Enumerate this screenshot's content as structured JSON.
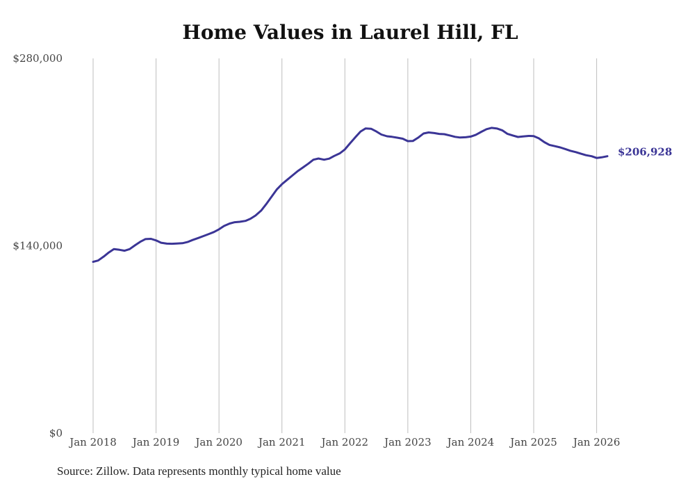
{
  "chart_data": {
    "type": "line",
    "title": "Home Values in Laurel Hill, FL",
    "source": "Source: Zillow. Data represents monthly typical home value",
    "xlabel": "",
    "ylabel": "",
    "ylim": [
      0,
      280000
    ],
    "y_ticks": [
      {
        "value": 0,
        "label": "$0"
      },
      {
        "value": 140000,
        "label": "$140,000"
      },
      {
        "value": 280000,
        "label": "$280,000"
      }
    ],
    "x_ticks": [
      {
        "value": 2018,
        "label": "Jan 2018"
      },
      {
        "value": 2019,
        "label": "Jan 2019"
      },
      {
        "value": 2020,
        "label": "Jan 2020"
      },
      {
        "value": 2021,
        "label": "Jan 2021"
      },
      {
        "value": 2022,
        "label": "Jan 2022"
      },
      {
        "value": 2023,
        "label": "Jan 2023"
      },
      {
        "value": 2024,
        "label": "Jan 2024"
      },
      {
        "value": 2025,
        "label": "Jan 2025"
      },
      {
        "value": 2026,
        "label": "Jan 2026"
      }
    ],
    "xlim": [
      2018,
      2026.17
    ],
    "grid": "vertical",
    "line_color": "#3b3596",
    "end_label": "$206,928",
    "series": [
      {
        "name": "Typical home value",
        "points": [
          [
            2018.0,
            128000
          ],
          [
            2018.08,
            129000
          ],
          [
            2018.17,
            132000
          ],
          [
            2018.25,
            135000
          ],
          [
            2018.33,
            137500
          ],
          [
            2018.42,
            137000
          ],
          [
            2018.5,
            136300
          ],
          [
            2018.58,
            137500
          ],
          [
            2018.67,
            140500
          ],
          [
            2018.75,
            143000
          ],
          [
            2018.83,
            145000
          ],
          [
            2018.92,
            145200
          ],
          [
            2019.0,
            144000
          ],
          [
            2019.08,
            142300
          ],
          [
            2019.17,
            141600
          ],
          [
            2019.25,
            141500
          ],
          [
            2019.33,
            141700
          ],
          [
            2019.42,
            141900
          ],
          [
            2019.5,
            142800
          ],
          [
            2019.58,
            144300
          ],
          [
            2019.67,
            145800
          ],
          [
            2019.75,
            147200
          ],
          [
            2019.83,
            148600
          ],
          [
            2019.92,
            150300
          ],
          [
            2020.0,
            152300
          ],
          [
            2020.08,
            154800
          ],
          [
            2020.17,
            156600
          ],
          [
            2020.25,
            157600
          ],
          [
            2020.33,
            157900
          ],
          [
            2020.42,
            158600
          ],
          [
            2020.5,
            160200
          ],
          [
            2020.58,
            162600
          ],
          [
            2020.67,
            166300
          ],
          [
            2020.75,
            171100
          ],
          [
            2020.83,
            176300
          ],
          [
            2020.92,
            182200
          ],
          [
            2021.0,
            186000
          ],
          [
            2021.08,
            189200
          ],
          [
            2021.17,
            192700
          ],
          [
            2021.25,
            195800
          ],
          [
            2021.33,
            198400
          ],
          [
            2021.42,
            201400
          ],
          [
            2021.5,
            204300
          ],
          [
            2021.58,
            205200
          ],
          [
            2021.67,
            204300
          ],
          [
            2021.75,
            205100
          ],
          [
            2021.83,
            207100
          ],
          [
            2021.92,
            209100
          ],
          [
            2022.0,
            212000
          ],
          [
            2022.08,
            216400
          ],
          [
            2022.17,
            221300
          ],
          [
            2022.25,
            225400
          ],
          [
            2022.33,
            227700
          ],
          [
            2022.42,
            227400
          ],
          [
            2022.5,
            225400
          ],
          [
            2022.58,
            223100
          ],
          [
            2022.67,
            221800
          ],
          [
            2022.75,
            221400
          ],
          [
            2022.83,
            220800
          ],
          [
            2022.92,
            220000
          ],
          [
            2023.0,
            218200
          ],
          [
            2023.08,
            218300
          ],
          [
            2023.17,
            221000
          ],
          [
            2023.25,
            223900
          ],
          [
            2023.33,
            224700
          ],
          [
            2023.42,
            224200
          ],
          [
            2023.5,
            223600
          ],
          [
            2023.58,
            223400
          ],
          [
            2023.67,
            222400
          ],
          [
            2023.75,
            221400
          ],
          [
            2023.83,
            220900
          ],
          [
            2023.92,
            221100
          ],
          [
            2024.0,
            221600
          ],
          [
            2024.08,
            222900
          ],
          [
            2024.17,
            225200
          ],
          [
            2024.25,
            227100
          ],
          [
            2024.33,
            228100
          ],
          [
            2024.42,
            227600
          ],
          [
            2024.5,
            226300
          ],
          [
            2024.58,
            223700
          ],
          [
            2024.67,
            222400
          ],
          [
            2024.75,
            221300
          ],
          [
            2024.83,
            221700
          ],
          [
            2024.92,
            222100
          ],
          [
            2025.0,
            222000
          ],
          [
            2025.08,
            220300
          ],
          [
            2025.17,
            217400
          ],
          [
            2025.25,
            215400
          ],
          [
            2025.33,
            214500
          ],
          [
            2025.42,
            213500
          ],
          [
            2025.5,
            212300
          ],
          [
            2025.58,
            211000
          ],
          [
            2025.67,
            210000
          ],
          [
            2025.75,
            208800
          ],
          [
            2025.83,
            207700
          ],
          [
            2025.92,
            206900
          ],
          [
            2026.0,
            205600
          ],
          [
            2026.08,
            206100
          ],
          [
            2026.17,
            206928
          ]
        ]
      }
    ]
  }
}
